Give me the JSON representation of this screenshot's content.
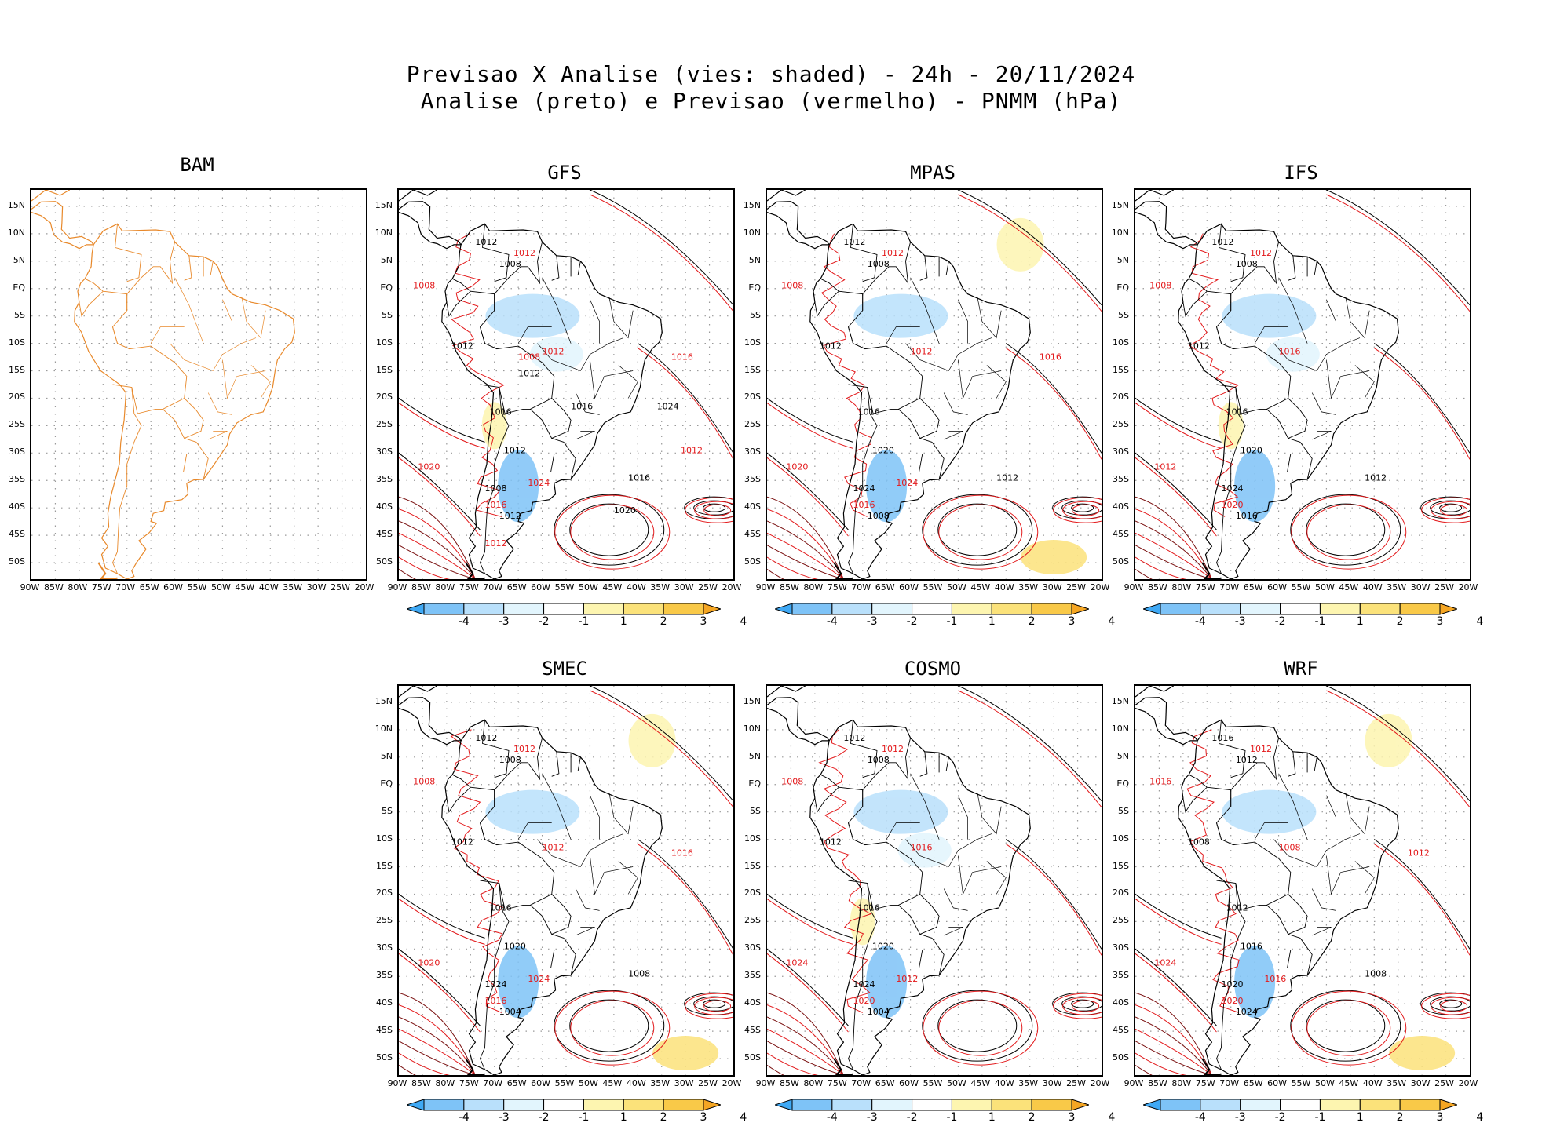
{
  "title_line1": "Previsao X Analise (vies: shaded) - 24h - 20/11/2024",
  "title_line2": "Analise (preto) e Previsao (vermelho) - PNMM (hPa)",
  "lat_labels": [
    "15N",
    "10N",
    "5N",
    "EQ",
    "5S",
    "10S",
    "15S",
    "20S",
    "25S",
    "30S",
    "35S",
    "40S",
    "45S",
    "50S"
  ],
  "lon_labels": [
    "90W",
    "85W",
    "80W",
    "75W",
    "70W",
    "65W",
    "60W",
    "55W",
    "50W",
    "45W",
    "40W",
    "35W",
    "30W",
    "25W",
    "20W"
  ],
  "colorbar": {
    "labels": [
      "-4",
      "-3",
      "-2",
      "-1",
      "1",
      "2",
      "3",
      "4"
    ],
    "colors": [
      "#3fa9f5",
      "#7ec3f7",
      "#b9e0fb",
      "#e2f5fd",
      "#ffffff",
      "#fdf5b0",
      "#fbe27a",
      "#f9c948",
      "#f5a623"
    ]
  },
  "contour_colors": {
    "analysis": "#000000",
    "forecast": "#e31a1c",
    "outline": "#e8892b"
  },
  "panels": [
    {
      "name": "BAM",
      "title": "BAM",
      "has_data": false
    },
    {
      "name": "GFS",
      "title": "GFS",
      "has_data": true,
      "labels_black": [
        "1012",
        "1008",
        "1012",
        "1016",
        "1012",
        "1008",
        "1012",
        "1016",
        "1020",
        "1024",
        "1016",
        "1012"
      ],
      "labels_red": [
        "1012",
        "1008",
        "1012",
        "1016",
        "1020",
        "1024",
        "1016",
        "1012",
        "1008",
        "1012"
      ]
    },
    {
      "name": "MPAS",
      "title": "MPAS",
      "has_data": true,
      "labels_black": [
        "1012",
        "1008",
        "1012",
        "1016",
        "1020",
        "1024",
        "1008",
        "1012"
      ],
      "labels_red": [
        "1012",
        "1008",
        "1012",
        "1016",
        "1020",
        "1024",
        "1016"
      ]
    },
    {
      "name": "IFS",
      "title": "IFS",
      "has_data": true,
      "labels_black": [
        "1012",
        "1008",
        "1012",
        "1016",
        "1020",
        "1024",
        "1016",
        "1012"
      ],
      "labels_red": [
        "1012",
        "1008",
        "1016",
        "1020",
        "1012"
      ]
    },
    {
      "name": "SMEC",
      "title": "SMEC",
      "has_data": true,
      "labels_black": [
        "1012",
        "1008",
        "1012",
        "1016",
        "1020",
        "1024",
        "1004",
        "1008"
      ],
      "labels_red": [
        "1012",
        "1008",
        "1012",
        "1016",
        "1020",
        "1024",
        "1016"
      ]
    },
    {
      "name": "COSMO",
      "title": "COSMO",
      "has_data": true,
      "labels_black": [
        "1012",
        "1008",
        "1012",
        "1016",
        "1020",
        "1024",
        "1004"
      ],
      "labels_red": [
        "1012",
        "1008",
        "1016",
        "1020",
        "1024",
        "1012"
      ]
    },
    {
      "name": "WRF",
      "title": "WRF",
      "has_data": true,
      "labels_black": [
        "1016",
        "1012",
        "1008",
        "1012",
        "1016",
        "1020",
        "1024",
        "1008"
      ],
      "labels_red": [
        "1012",
        "1016",
        "1008",
        "1020",
        "1024",
        "1016",
        "1012"
      ]
    }
  ]
}
